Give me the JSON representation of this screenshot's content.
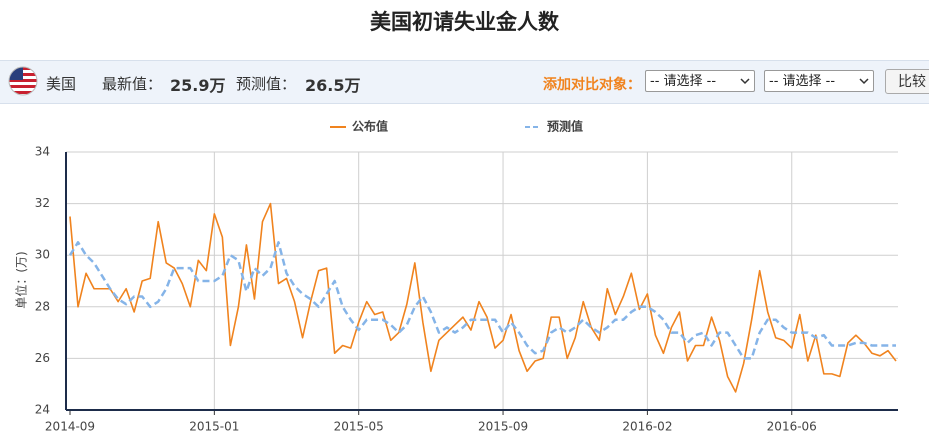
{
  "page": {
    "title": "美国初请失业金人数"
  },
  "toolbar": {
    "country": "美国",
    "latest_label": "最新值：",
    "latest_value": "25.9万",
    "forecast_label": "预测值：",
    "forecast_value": "26.5万",
    "compare_label": "添加对比对象：",
    "selects": [
      "-- 请选择 --",
      "-- 请选择 --"
    ],
    "button": "比较"
  },
  "chart_data": {
    "type": "line",
    "y_label": "单位：(万)",
    "categories": [
      "2014-09",
      null,
      null,
      null,
      null,
      null,
      null,
      null,
      null,
      null,
      null,
      null,
      null,
      null,
      null,
      null,
      null,
      null,
      "2015-01",
      null,
      null,
      null,
      null,
      null,
      null,
      null,
      null,
      null,
      null,
      null,
      null,
      null,
      null,
      null,
      null,
      null,
      "2015-05",
      null,
      null,
      null,
      null,
      null,
      null,
      null,
      null,
      null,
      null,
      null,
      null,
      null,
      null,
      null,
      null,
      null,
      "2015-09",
      null,
      null,
      null,
      null,
      null,
      null,
      null,
      null,
      null,
      null,
      null,
      null,
      null,
      null,
      null,
      null,
      null,
      "2016-02",
      null,
      null,
      null,
      null,
      null,
      null,
      null,
      null,
      null,
      null,
      null,
      null,
      null,
      null,
      null,
      null,
      null,
      "2016-06",
      null,
      null,
      null,
      null,
      null,
      null,
      null,
      null,
      null,
      null,
      null,
      null,
      null
    ],
    "series": [
      {
        "name": "公布值",
        "color": "#f0831e",
        "line_style": "solid",
        "values": [
          31.5,
          28.0,
          29.3,
          28.7,
          28.7,
          28.7,
          28.2,
          28.7,
          27.8,
          29.0,
          29.1,
          31.3,
          29.7,
          29.5,
          28.9,
          28.0,
          29.8,
          29.4,
          31.6,
          30.7,
          26.5,
          28.0,
          30.4,
          28.3,
          31.3,
          32.0,
          28.9,
          29.1,
          28.2,
          26.8,
          28.2,
          29.4,
          29.5,
          26.2,
          26.5,
          26.4,
          27.4,
          28.2,
          27.7,
          27.8,
          26.7,
          27.0,
          28.1,
          29.7,
          27.4,
          25.5,
          26.7,
          27.0,
          27.3,
          27.6,
          27.1,
          28.2,
          27.6,
          26.4,
          26.7,
          27.7,
          26.3,
          25.5,
          25.9,
          26.0,
          27.6,
          27.6,
          26.0,
          26.8,
          28.2,
          27.2,
          26.7,
          28.7,
          27.7,
          28.4,
          29.3,
          27.9,
          28.5,
          26.9,
          26.2,
          27.2,
          27.8,
          25.9,
          26.5,
          26.5,
          27.6,
          26.7,
          25.3,
          24.7,
          25.8,
          27.5,
          29.4,
          27.8,
          26.8,
          26.7,
          26.4,
          27.7,
          25.9,
          26.9,
          25.4,
          25.4,
          25.3,
          26.6,
          26.9,
          26.6,
          26.2,
          26.1,
          26.3,
          25.9
        ]
      },
      {
        "name": "预测值",
        "color": "#85b4e8",
        "line_style": "dashed",
        "values": [
          30.0,
          30.5,
          30.0,
          29.7,
          29.2,
          28.7,
          28.3,
          28.1,
          28.4,
          28.4,
          28.0,
          28.2,
          28.7,
          29.5,
          29.5,
          29.5,
          29.0,
          29.0,
          29.0,
          29.2,
          30.0,
          29.8,
          28.6,
          29.5,
          29.2,
          29.5,
          30.5,
          29.3,
          28.8,
          28.5,
          28.3,
          28.0,
          28.5,
          29.0,
          28.0,
          27.5,
          27.1,
          27.5,
          27.5,
          27.5,
          27.3,
          27.0,
          27.3,
          28.0,
          28.4,
          27.8,
          27.0,
          27.2,
          27.0,
          27.2,
          27.5,
          27.5,
          27.5,
          27.5,
          27.0,
          27.4,
          27.0,
          26.5,
          26.2,
          26.3,
          27.0,
          27.2,
          27.0,
          27.2,
          27.5,
          27.2,
          27.0,
          27.2,
          27.5,
          27.5,
          27.8,
          28.0,
          28.0,
          27.8,
          27.5,
          27.0,
          27.0,
          26.6,
          26.9,
          27.0,
          26.5,
          27.0,
          27.0,
          26.5,
          26.0,
          26.0,
          27.0,
          27.5,
          27.5,
          27.2,
          27.0,
          27.0,
          27.0,
          26.8,
          26.9,
          26.5,
          26.5,
          26.5,
          26.6,
          26.6,
          26.5,
          26.5,
          26.5,
          26.5
        ]
      }
    ],
    "ylim": [
      24,
      34
    ],
    "yticks": [
      24,
      26,
      28,
      30,
      32,
      34
    ],
    "grid": true
  }
}
